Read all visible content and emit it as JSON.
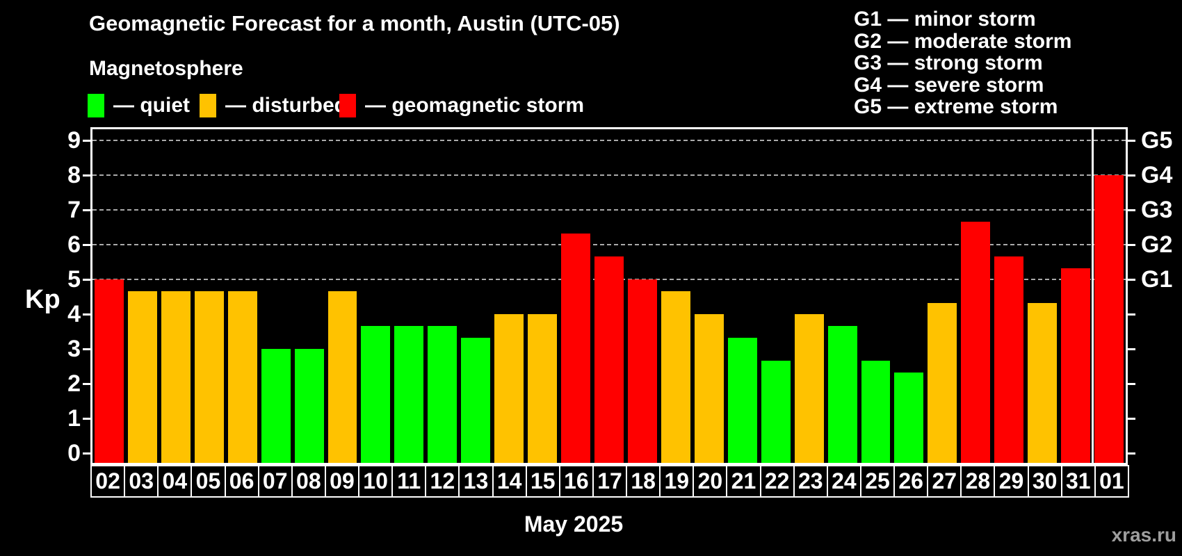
{
  "title": "Geomagnetic Forecast for a month, Austin (UTC-05)",
  "subtitle": "Magnetosphere",
  "legend": {
    "items": [
      {
        "key": "quiet",
        "label": "— quiet"
      },
      {
        "key": "disturbed",
        "label": "— disturbed"
      },
      {
        "key": "storm",
        "label": "— geomagnetic storm"
      }
    ]
  },
  "storm_scale_legend": {
    "lines": [
      "G1 — minor storm",
      "G2 — moderate storm",
      "G3 — strong storm",
      "G4 — severe storm",
      "G5 — extreme storm"
    ]
  },
  "colors": {
    "quiet": "#00ff00",
    "disturbed": "#ffc200",
    "storm": "#ff0000",
    "background": "#000000",
    "frame": "#ffffff",
    "gridline": "#aaaaaa",
    "text": "#ffffff",
    "watermark": "#9e9e9e"
  },
  "axis": {
    "ylabel": "Kp",
    "yticks": [
      0,
      1,
      2,
      3,
      4,
      5,
      6,
      7,
      8,
      9
    ],
    "gridlines_at": [
      5,
      6,
      7,
      8,
      9
    ],
    "right_axis_labels": [
      {
        "kp": 5,
        "label": "G1"
      },
      {
        "kp": 6,
        "label": "G2"
      },
      {
        "kp": 7,
        "label": "G3"
      },
      {
        "kp": 8,
        "label": "G4"
      },
      {
        "kp": 9,
        "label": "G5"
      }
    ]
  },
  "chart_data": {
    "type": "bar",
    "title": "Geomagnetic Forecast for a month, Austin (UTC-05)",
    "xlabel": "May 2025",
    "ylabel": "Kp",
    "ylim": [
      0,
      9
    ],
    "categories": [
      "02",
      "03",
      "04",
      "05",
      "06",
      "07",
      "08",
      "09",
      "10",
      "11",
      "12",
      "13",
      "14",
      "15",
      "16",
      "17",
      "18",
      "19",
      "20",
      "21",
      "22",
      "23",
      "24",
      "25",
      "26",
      "27",
      "28",
      "29",
      "30",
      "31",
      "01"
    ],
    "values": [
      5.0,
      4.67,
      4.67,
      4.67,
      4.67,
      3.0,
      3.0,
      4.67,
      3.67,
      3.67,
      3.67,
      3.33,
      4.0,
      4.0,
      6.33,
      5.67,
      5.0,
      4.67,
      4.0,
      3.33,
      2.67,
      4.0,
      3.67,
      2.67,
      2.33,
      4.33,
      6.67,
      5.67,
      4.33,
      5.33,
      8.0
    ],
    "statuses": [
      "storm",
      "disturbed",
      "disturbed",
      "disturbed",
      "disturbed",
      "quiet",
      "quiet",
      "disturbed",
      "quiet",
      "quiet",
      "quiet",
      "quiet",
      "disturbed",
      "disturbed",
      "storm",
      "storm",
      "storm",
      "disturbed",
      "disturbed",
      "quiet",
      "quiet",
      "disturbed",
      "quiet",
      "quiet",
      "quiet",
      "disturbed",
      "storm",
      "storm",
      "disturbed",
      "storm",
      "storm"
    ],
    "month_separator_before_index": 30
  },
  "footer": {
    "month_label": "May 2025",
    "watermark": "xras.ru"
  }
}
